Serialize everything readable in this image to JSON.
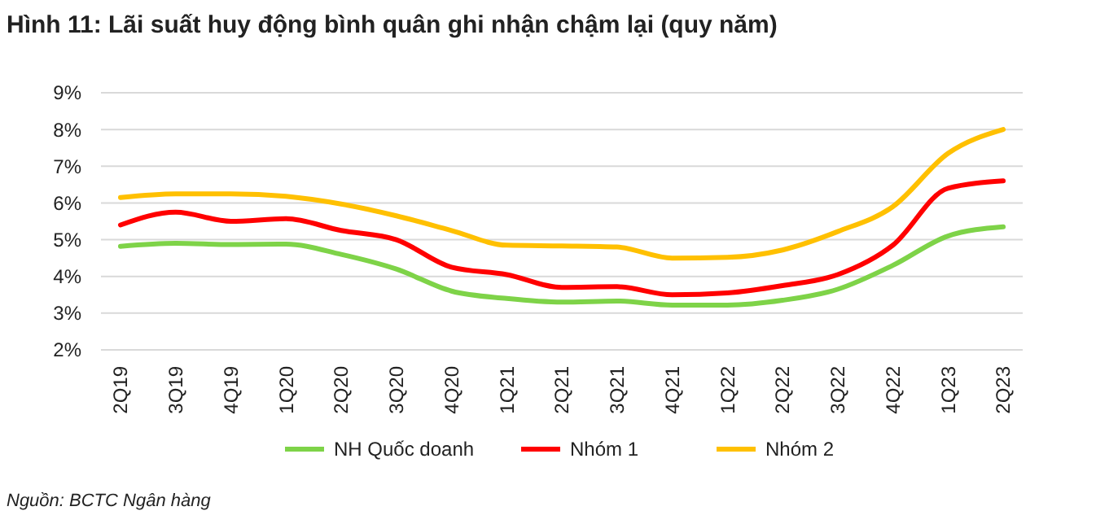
{
  "chart_data": {
    "type": "line",
    "title": "Hình 11: Lãi suất huy động bình quân ghi nhận chậm lại (quy năm)",
    "categories": [
      "2Q19",
      "3Q19",
      "4Q19",
      "1Q20",
      "2Q20",
      "3Q20",
      "4Q20",
      "1Q21",
      "2Q21",
      "3Q21",
      "4Q21",
      "1Q22",
      "2Q22",
      "3Q22",
      "4Q22",
      "1Q23",
      "2Q23"
    ],
    "series": [
      {
        "name": "NH Quốc doanh",
        "color": "#7ed348",
        "values": [
          4.82,
          4.9,
          4.87,
          4.88,
          4.6,
          4.2,
          3.6,
          3.4,
          3.3,
          3.33,
          3.22,
          3.22,
          3.35,
          3.65,
          4.3,
          5.1,
          5.35
        ]
      },
      {
        "name": "Nhóm 1",
        "color": "#ff0000",
        "values": [
          5.4,
          5.75,
          5.5,
          5.57,
          5.25,
          5.0,
          4.25,
          4.05,
          3.7,
          3.72,
          3.5,
          3.55,
          3.75,
          4.05,
          4.85,
          6.4,
          6.6
        ]
      },
      {
        "name": "Nhóm 2",
        "color": "#ffc000",
        "values": [
          6.15,
          6.25,
          6.25,
          6.18,
          5.97,
          5.65,
          5.25,
          4.85,
          4.83,
          4.8,
          4.5,
          4.52,
          4.72,
          5.22,
          5.9,
          7.35,
          8.0
        ]
      }
    ],
    "ylim": [
      2,
      9
    ],
    "yticks": [
      {
        "value": 2,
        "label": "2%"
      },
      {
        "value": 3,
        "label": "3%"
      },
      {
        "value": 4,
        "label": "4%"
      },
      {
        "value": 5,
        "label": "5%"
      },
      {
        "value": 6,
        "label": "6%"
      },
      {
        "value": 7,
        "label": "7%"
      },
      {
        "value": 8,
        "label": "8%"
      },
      {
        "value": 9,
        "label": "9%"
      }
    ],
    "grid": "y",
    "legend": "bottom",
    "marker": "none",
    "line_style": "solid",
    "annotations": [
      "Nguồn: BCTC Ngân hàng"
    ]
  }
}
